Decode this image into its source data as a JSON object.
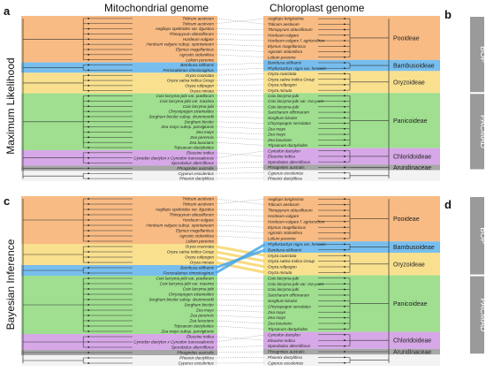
{
  "headers": {
    "left": "Mitochondrial genome",
    "right": "Chloroplast genome"
  },
  "panel_letters": {
    "a": "a",
    "b": "b",
    "c": "c",
    "d": "d"
  },
  "methods": {
    "top": "Maximum Likelihood",
    "bottom": "Bayesian Inference"
  },
  "groups": {
    "bop": "BOP",
    "pacmad": "PACMAD"
  },
  "colors": {
    "pooideae": "#f6a45a",
    "bambusoideae": "#4aa8e8",
    "oryzoideae": "#f7d56a",
    "panicoideae": "#7fd46a",
    "chloridoideae": "#c98be0",
    "arundinaceae": "#8a8a8a",
    "group_bar": "#9a9a9a"
  },
  "subfamilies": [
    {
      "key": "pooideae",
      "label": "Pooideae"
    },
    {
      "key": "bambusoideae",
      "label": "Bambusoideae"
    },
    {
      "key": "oryzoideae",
      "label": "Oryzoideae"
    },
    {
      "key": "panicoideae",
      "label": "Panicoideae"
    },
    {
      "key": "chloridoideae",
      "label": "Chloridoideae"
    },
    {
      "key": "arundinaceae",
      "label": "Arundinaceae"
    }
  ],
  "top": {
    "left": [
      {
        "name": "Triticum aestivum",
        "sf": "pooideae"
      },
      {
        "name": "Triticum aestivum",
        "sf": "pooideae"
      },
      {
        "name": "Aegilops speltoides var. ligustica",
        "sf": "pooideae"
      },
      {
        "name": "Thinopyrum obtusiflorum",
        "sf": "pooideae"
      },
      {
        "name": "Hordeum vulgare",
        "sf": "pooideae"
      },
      {
        "name": "Hordeum vulgare subsp. spontaneum",
        "sf": "pooideae"
      },
      {
        "name": "Elymus magellanicus",
        "sf": "pooideae"
      },
      {
        "name": "Agrostis stolonifera",
        "sf": "pooideae"
      },
      {
        "name": "Lolium perenne",
        "sf": "pooideae"
      },
      {
        "name": "Bambusa oldhamii",
        "sf": "bambusoideae"
      },
      {
        "name": "Ferrocalamus rimosivaginus",
        "sf": "bambusoideae"
      },
      {
        "name": "Oryza coarctata",
        "sf": "oryzoideae"
      },
      {
        "name": "Oryza sativa Indica Group",
        "sf": "oryzoideae"
      },
      {
        "name": "Oryza rufipogon",
        "sf": "oryzoideae"
      },
      {
        "name": "Oryza minuta",
        "sf": "oryzoideae"
      },
      {
        "name": "Coix lacryma-jobi var. puellarum",
        "sf": "panicoideae"
      },
      {
        "name": "Coix lacryma-jobi var. maxima",
        "sf": "panicoideae"
      },
      {
        "name": "Coix lacryma-jobi",
        "sf": "panicoideae"
      },
      {
        "name": "Chrysopogon zizanioides",
        "sf": "panicoideae"
      },
      {
        "name": "Sorghum bicolor subsp. drummondii",
        "sf": "panicoideae"
      },
      {
        "name": "Sorghum bicolor",
        "sf": "panicoideae"
      },
      {
        "name": "Zea mays subsp. parviglumis",
        "sf": "panicoideae"
      },
      {
        "name": "Zea mays",
        "sf": "panicoideae"
      },
      {
        "name": "Zea perennis",
        "sf": "panicoideae"
      },
      {
        "name": "Zea luxurians",
        "sf": "panicoideae"
      },
      {
        "name": "Tripsacum dactyloides",
        "sf": "panicoideae"
      },
      {
        "name": "Eleusine indica",
        "sf": "chloridoideae"
      },
      {
        "name": "Cynodon dactylon x Cynodon transvaalensis",
        "sf": "chloridoideae"
      },
      {
        "name": "Sporobolus alterniflorus",
        "sf": "chloridoideae"
      },
      {
        "name": "Phragmites australis",
        "sf": "arundinaceae"
      },
      {
        "name": "Cyperus esculentus",
        "sf": "out"
      },
      {
        "name": "Phoenix dactylifera",
        "sf": "out"
      }
    ],
    "right": [
      {
        "name": "Aegilops longissima",
        "sf": "pooideae"
      },
      {
        "name": "Triticum aestivum",
        "sf": "pooideae"
      },
      {
        "name": "Thinopyrum obtusiflorum",
        "sf": "pooideae"
      },
      {
        "name": "Hordeum vulgare",
        "sf": "pooideae"
      },
      {
        "name": "Hordeum vulgare f. agriocrithon",
        "sf": "pooideae"
      },
      {
        "name": "Elymus magellanicus",
        "sf": "pooideae"
      },
      {
        "name": "Agrostis stolonifera",
        "sf": "pooideae"
      },
      {
        "name": "Lolium perenne",
        "sf": "pooideae"
      },
      {
        "name": "Bambusa oldhamii",
        "sf": "bambusoideae"
      },
      {
        "name": "Phyllostachys nigra var. henonis",
        "sf": "bambusoideae"
      },
      {
        "name": "Oryza coarctata",
        "sf": "oryzoideae"
      },
      {
        "name": "Oryza sativa Indica Group",
        "sf": "oryzoideae"
      },
      {
        "name": "Oryza rufipogon",
        "sf": "oryzoideae"
      },
      {
        "name": "Oryza minuta",
        "sf": "oryzoideae"
      },
      {
        "name": "Coix lacryma-jobi",
        "sf": "panicoideae"
      },
      {
        "name": "Coix lacryma-jobi var. ma-yuen",
        "sf": "panicoideae"
      },
      {
        "name": "Coix lacryma-jobi",
        "sf": "panicoideae"
      },
      {
        "name": "Saccharum officinarum",
        "sf": "panicoideae"
      },
      {
        "name": "Sorghum bicolor",
        "sf": "panicoideae"
      },
      {
        "name": "Chrysopogon serrulatus",
        "sf": "panicoideae"
      },
      {
        "name": "Zea mays",
        "sf": "panicoideae"
      },
      {
        "name": "Zea mays",
        "sf": "panicoideae"
      },
      {
        "name": "Zea luxurians",
        "sf": "panicoideae"
      },
      {
        "name": "Tripsacum dactyloides",
        "sf": "panicoideae"
      },
      {
        "name": "Cynodon dactylon",
        "sf": "chloridoideae"
      },
      {
        "name": "Eleusine indica",
        "sf": "chloridoideae"
      },
      {
        "name": "Sporobolus alterniflorus",
        "sf": "chloridoideae"
      },
      {
        "name": "Phragmites australis",
        "sf": "arundinaceae"
      },
      {
        "name": "Cyperus esculentus",
        "sf": "out"
      },
      {
        "name": "Phoenix dactylifera",
        "sf": "out"
      }
    ]
  },
  "bottom": {
    "left": [
      {
        "name": "Triticum aestivum",
        "sf": "pooideae"
      },
      {
        "name": "Triticum aestivum",
        "sf": "pooideae"
      },
      {
        "name": "Aegilops speltoides var. ligustica",
        "sf": "pooideae"
      },
      {
        "name": "Thinopyrum obtusiflorum",
        "sf": "pooideae"
      },
      {
        "name": "Hordeum vulgare",
        "sf": "pooideae"
      },
      {
        "name": "Hordeum vulgare subsp. spontaneum",
        "sf": "pooideae"
      },
      {
        "name": "Elymus magellanicus",
        "sf": "pooideae"
      },
      {
        "name": "Agrostis stolonifera",
        "sf": "pooideae"
      },
      {
        "name": "Lolium perenne",
        "sf": "pooideae"
      },
      {
        "name": "Oryza coarctata",
        "sf": "oryzoideae"
      },
      {
        "name": "Oryza sativa Indica Group",
        "sf": "oryzoideae"
      },
      {
        "name": "Oryza rufipogon",
        "sf": "oryzoideae"
      },
      {
        "name": "Oryza minuta",
        "sf": "oryzoideae"
      },
      {
        "name": "Bambusa oldhamii",
        "sf": "bambusoideae"
      },
      {
        "name": "Ferrocalamus rimosivaginus",
        "sf": "bambusoideae"
      },
      {
        "name": "Coix lacryma-jobi var. puellarum",
        "sf": "panicoideae"
      },
      {
        "name": "Coix lacryma-jobi var. maxima",
        "sf": "panicoideae"
      },
      {
        "name": "Coix lacryma-jobi",
        "sf": "panicoideae"
      },
      {
        "name": "Chrysopogon zizanioides",
        "sf": "panicoideae"
      },
      {
        "name": "Sorghum bicolor subsp. drummondii",
        "sf": "panicoideae"
      },
      {
        "name": "Sorghum bicolor",
        "sf": "panicoideae"
      },
      {
        "name": "Zea mays",
        "sf": "panicoideae"
      },
      {
        "name": "Zea perennis",
        "sf": "panicoideae"
      },
      {
        "name": "Zea luxurians",
        "sf": "panicoideae"
      },
      {
        "name": "Tripsacum dactyloides",
        "sf": "panicoideae"
      },
      {
        "name": "Zea mays subsp. parviglumis",
        "sf": "panicoideae"
      },
      {
        "name": "Eleusine indica",
        "sf": "chloridoideae"
      },
      {
        "name": "Cynodon dactylon x Cynodon transvaalensis",
        "sf": "chloridoideae"
      },
      {
        "name": "Sporobolus alterniflorus",
        "sf": "chloridoideae"
      },
      {
        "name": "Phragmites australis",
        "sf": "arundinaceae"
      },
      {
        "name": "Phoenix dactylifera",
        "sf": "out"
      },
      {
        "name": "Cyperus esculentus",
        "sf": "out"
      }
    ],
    "right": [
      {
        "name": "Aegilops longissima",
        "sf": "pooideae"
      },
      {
        "name": "Triticum aestivum",
        "sf": "pooideae"
      },
      {
        "name": "Thinopyrum obtusiflorum",
        "sf": "pooideae"
      },
      {
        "name": "Hordeum vulgare",
        "sf": "pooideae"
      },
      {
        "name": "Hordeum vulgare f. agriocrithon",
        "sf": "pooideae"
      },
      {
        "name": "Elymus magellanicus",
        "sf": "pooideae"
      },
      {
        "name": "Agrostis stolonifera",
        "sf": "pooideae"
      },
      {
        "name": "Lolium perenne",
        "sf": "pooideae"
      },
      {
        "name": "Phyllostachys nigra var. henonis",
        "sf": "bambusoideae"
      },
      {
        "name": "Bambusa oldhamii",
        "sf": "bambusoideae"
      },
      {
        "name": "Oryza coarctata",
        "sf": "oryzoideae"
      },
      {
        "name": "Oryza sativa Indica Group",
        "sf": "oryzoideae"
      },
      {
        "name": "Oryza rufipogon",
        "sf": "oryzoideae"
      },
      {
        "name": "Oryza minuta",
        "sf": "oryzoideae"
      },
      {
        "name": "Coix lacryma-jobi",
        "sf": "panicoideae"
      },
      {
        "name": "Coix lacryma-jobi var. ma-yuen",
        "sf": "panicoideae"
      },
      {
        "name": "Coix lacryma-jobi",
        "sf": "panicoideae"
      },
      {
        "name": "Saccharum officinarum",
        "sf": "panicoideae"
      },
      {
        "name": "Sorghum bicolor",
        "sf": "panicoideae"
      },
      {
        "name": "Chrysopogon serrulatus",
        "sf": "panicoideae"
      },
      {
        "name": "Zea mays",
        "sf": "panicoideae"
      },
      {
        "name": "Zea mays",
        "sf": "panicoideae"
      },
      {
        "name": "Zea luxurians",
        "sf": "panicoideae"
      },
      {
        "name": "Tripsacum dactyloides",
        "sf": "panicoideae"
      },
      {
        "name": "Cynodon dactylon",
        "sf": "chloridoideae"
      },
      {
        "name": "Eleusine indica",
        "sf": "chloridoideae"
      },
      {
        "name": "Sporobolus alterniflorus",
        "sf": "chloridoideae"
      },
      {
        "name": "Phragmites australis",
        "sf": "arundinaceae"
      },
      {
        "name": "Phoenix dactylifera",
        "sf": "out"
      },
      {
        "name": "Cyperus esculentus",
        "sf": "out"
      }
    ]
  }
}
